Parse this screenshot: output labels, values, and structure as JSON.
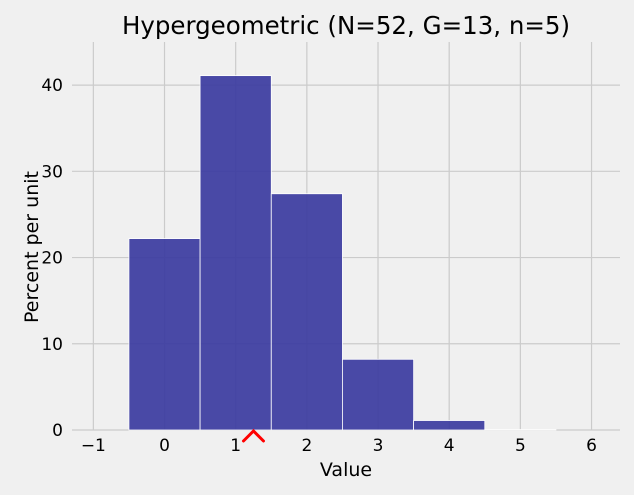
{
  "chart_data": {
    "type": "bar",
    "title": "Hypergeometric (N=52, G=13, n=5)",
    "xlabel": "Value",
    "ylabel": "Percent per unit",
    "xlim": [
      -1.3,
      6.4
    ],
    "ylim": [
      0,
      45
    ],
    "xticks": [
      -1,
      0,
      1,
      2,
      3,
      4,
      5,
      6
    ],
    "yticks": [
      0,
      10,
      20,
      30,
      40
    ],
    "xtick_labels": [
      "−1",
      "0",
      "1",
      "2",
      "3",
      "4",
      "5",
      "6"
    ],
    "ytick_labels": [
      "0",
      "10",
      "20",
      "30",
      "40"
    ],
    "bin_width": 1,
    "categories": [
      0,
      1,
      2,
      3,
      4,
      5
    ],
    "values": [
      22.2,
      41.1,
      27.4,
      8.2,
      1.1,
      0.05
    ],
    "grid": true,
    "marker": {
      "x": 1.25,
      "symbol": "^",
      "color": "#ff0000"
    },
    "colors": {
      "background": "#f0f0f0",
      "bar_fill": "#3b3b9f",
      "bar_edge": "#ffffff",
      "grid": "#cbcbcb",
      "text": "#000000"
    }
  }
}
